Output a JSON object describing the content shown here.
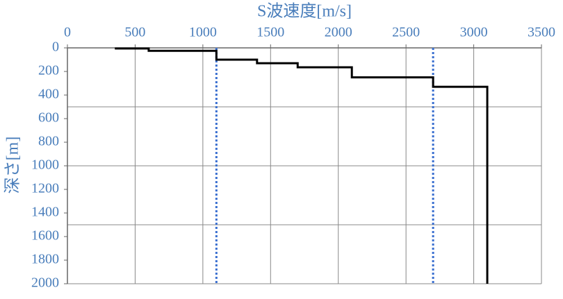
{
  "chart_data": {
    "type": "step-profile",
    "xlabel": "S波速度[m/s]",
    "ylabel": "深さ[m]",
    "xlim": [
      0,
      3500
    ],
    "xticks": [
      0,
      500,
      1000,
      1500,
      2000,
      2500,
      3000,
      3500
    ],
    "ylim": [
      0,
      2000
    ],
    "yticks": [
      0,
      200,
      400,
      600,
      800,
      1000,
      1200,
      1400,
      1600,
      1800,
      2000
    ],
    "y_inverted": true,
    "x_axis_top": true,
    "xgrid": [
      500,
      1000,
      1500,
      2000,
      2500,
      3000,
      3500
    ],
    "ygrid": [
      500,
      1000,
      1500,
      2000
    ],
    "series": [
      {
        "color": "#000000",
        "x": [
          350,
          600,
          600,
          1100,
          1100,
          1400,
          1400,
          1700,
          1700,
          2100,
          2100,
          2700,
          2700,
          3100,
          3100
        ],
        "values": [
          5,
          5,
          25,
          25,
          100,
          100,
          130,
          130,
          165,
          165,
          250,
          250,
          330,
          330,
          2000
        ]
      }
    ],
    "reference_lines": {
      "color": "#3a6fd0",
      "x": [
        1100,
        2700
      ]
    }
  }
}
